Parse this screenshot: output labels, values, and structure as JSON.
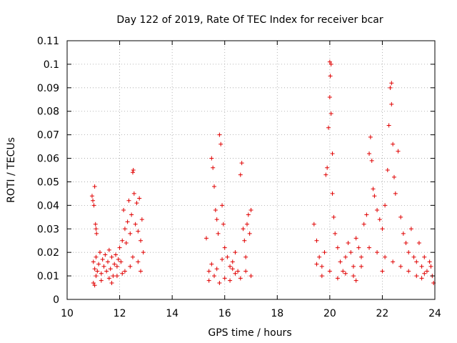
{
  "chart_data": {
    "type": "scatter",
    "title": "Day 122 of 2019, Rate Of TEC Index for receiver bcar",
    "xlabel": "GPS time / hours",
    "ylabel": "ROTI / TECUs",
    "xlim": [
      10,
      24
    ],
    "ylim": [
      0,
      0.11
    ],
    "grid": true,
    "marker": "plus",
    "color": "#e00000",
    "x_ticks": [
      10,
      12,
      14,
      16,
      18,
      20,
      22,
      24
    ],
    "x_tick_labels": [
      "10",
      "12",
      "14",
      "16",
      "18",
      "20",
      "22",
      "24"
    ],
    "y_ticks": [
      0,
      0.01,
      0.02,
      0.03,
      0.04,
      0.05,
      0.06,
      0.07,
      0.08,
      0.09,
      0.1,
      0.11
    ],
    "y_tick_labels": [
      "0",
      "0.01",
      "0.02",
      "0.03",
      "0.04",
      "0.05",
      "0.06",
      "0.07",
      "0.08",
      "0.09",
      "0.1",
      "0.11"
    ],
    "series": [
      {
        "name": "ROTI",
        "points": [
          [
            10.95,
            0.044
          ],
          [
            10.98,
            0.042
          ],
          [
            11.02,
            0.04
          ],
          [
            11.05,
            0.048
          ],
          [
            11.08,
            0.032
          ],
          [
            11.1,
            0.03
          ],
          [
            11.12,
            0.028
          ],
          [
            11.0,
            0.007
          ],
          [
            11.05,
            0.006
          ],
          [
            11.1,
            0.01
          ],
          [
            11.0,
            0.016
          ],
          [
            11.05,
            0.013
          ],
          [
            11.1,
            0.018
          ],
          [
            11.15,
            0.012
          ],
          [
            11.2,
            0.015
          ],
          [
            11.25,
            0.02
          ],
          [
            11.3,
            0.011
          ],
          [
            11.35,
            0.017
          ],
          [
            11.4,
            0.014
          ],
          [
            11.45,
            0.019
          ],
          [
            11.5,
            0.012
          ],
          [
            11.55,
            0.016
          ],
          [
            11.6,
            0.021
          ],
          [
            11.65,
            0.013
          ],
          [
            11.7,
            0.018
          ],
          [
            11.75,
            0.01
          ],
          [
            11.8,
            0.015
          ],
          [
            11.85,
            0.019
          ],
          [
            11.9,
            0.014
          ],
          [
            11.95,
            0.017
          ],
          [
            12.0,
            0.022
          ],
          [
            12.05,
            0.016
          ],
          [
            12.1,
            0.025
          ],
          [
            12.15,
            0.038
          ],
          [
            12.2,
            0.03
          ],
          [
            12.25,
            0.024
          ],
          [
            12.3,
            0.033
          ],
          [
            12.35,
            0.042
          ],
          [
            12.4,
            0.028
          ],
          [
            12.45,
            0.036
          ],
          [
            12.5,
            0.054
          ],
          [
            12.52,
            0.055
          ],
          [
            12.55,
            0.045
          ],
          [
            12.6,
            0.032
          ],
          [
            12.65,
            0.041
          ],
          [
            12.7,
            0.029
          ],
          [
            12.75,
            0.043
          ],
          [
            12.8,
            0.025
          ],
          [
            12.85,
            0.034
          ],
          [
            12.9,
            0.02
          ],
          [
            11.3,
            0.008
          ],
          [
            11.6,
            0.009
          ],
          [
            11.9,
            0.01
          ],
          [
            12.2,
            0.012
          ],
          [
            12.5,
            0.018
          ],
          [
            12.7,
            0.016
          ],
          [
            12.8,
            0.012
          ],
          [
            12.4,
            0.014
          ],
          [
            12.1,
            0.011
          ],
          [
            11.7,
            0.007
          ],
          [
            15.3,
            0.026
          ],
          [
            15.4,
            0.012
          ],
          [
            15.5,
            0.06
          ],
          [
            15.55,
            0.056
          ],
          [
            15.6,
            0.048
          ],
          [
            15.65,
            0.038
          ],
          [
            15.7,
            0.034
          ],
          [
            15.75,
            0.028
          ],
          [
            15.8,
            0.07
          ],
          [
            15.85,
            0.066
          ],
          [
            15.9,
            0.04
          ],
          [
            15.95,
            0.032
          ],
          [
            16.0,
            0.022
          ],
          [
            16.1,
            0.018
          ],
          [
            16.2,
            0.014
          ],
          [
            16.3,
            0.016
          ],
          [
            16.4,
            0.02
          ],
          [
            16.5,
            0.012
          ],
          [
            16.6,
            0.053
          ],
          [
            16.65,
            0.058
          ],
          [
            16.7,
            0.03
          ],
          [
            16.75,
            0.025
          ],
          [
            16.8,
            0.018
          ],
          [
            16.85,
            0.032
          ],
          [
            16.9,
            0.036
          ],
          [
            16.95,
            0.028
          ],
          [
            17.0,
            0.038
          ],
          [
            15.4,
            0.008
          ],
          [
            15.6,
            0.01
          ],
          [
            15.8,
            0.007
          ],
          [
            16.0,
            0.009
          ],
          [
            16.2,
            0.008
          ],
          [
            16.4,
            0.011
          ],
          [
            16.6,
            0.009
          ],
          [
            16.8,
            0.012
          ],
          [
            17.0,
            0.01
          ],
          [
            15.5,
            0.015
          ],
          [
            15.7,
            0.013
          ],
          [
            15.9,
            0.017
          ],
          [
            16.3,
            0.013
          ],
          [
            19.4,
            0.032
          ],
          [
            19.5,
            0.025
          ],
          [
            19.6,
            0.018
          ],
          [
            19.7,
            0.014
          ],
          [
            19.8,
            0.02
          ],
          [
            19.85,
            0.053
          ],
          [
            19.9,
            0.056
          ],
          [
            19.95,
            0.073
          ],
          [
            20.0,
            0.086
          ],
          [
            20.02,
            0.095
          ],
          [
            20.0,
            0.101
          ],
          [
            20.05,
            0.1
          ],
          [
            20.05,
            0.079
          ],
          [
            20.1,
            0.062
          ],
          [
            20.1,
            0.045
          ],
          [
            20.15,
            0.035
          ],
          [
            20.2,
            0.028
          ],
          [
            20.3,
            0.022
          ],
          [
            20.4,
            0.016
          ],
          [
            20.5,
            0.012
          ],
          [
            20.6,
            0.018
          ],
          [
            20.7,
            0.024
          ],
          [
            20.8,
            0.02
          ],
          [
            20.9,
            0.014
          ],
          [
            21.0,
            0.026
          ],
          [
            21.1,
            0.022
          ],
          [
            21.2,
            0.018
          ],
          [
            21.3,
            0.032
          ],
          [
            21.4,
            0.036
          ],
          [
            21.5,
            0.062
          ],
          [
            21.55,
            0.069
          ],
          [
            21.6,
            0.059
          ],
          [
            21.65,
            0.047
          ],
          [
            21.7,
            0.044
          ],
          [
            21.8,
            0.038
          ],
          [
            21.9,
            0.034
          ],
          [
            22.0,
            0.03
          ],
          [
            22.1,
            0.04
          ],
          [
            22.2,
            0.055
          ],
          [
            22.25,
            0.074
          ],
          [
            22.3,
            0.09
          ],
          [
            22.35,
            0.092
          ],
          [
            22.35,
            0.083
          ],
          [
            22.4,
            0.066
          ],
          [
            22.45,
            0.052
          ],
          [
            22.5,
            0.045
          ],
          [
            22.6,
            0.063
          ],
          [
            22.7,
            0.035
          ],
          [
            22.8,
            0.028
          ],
          [
            22.9,
            0.024
          ],
          [
            23.0,
            0.02
          ],
          [
            23.1,
            0.03
          ],
          [
            23.2,
            0.018
          ],
          [
            23.3,
            0.016
          ],
          [
            23.4,
            0.024
          ],
          [
            23.5,
            0.014
          ],
          [
            23.6,
            0.018
          ],
          [
            23.7,
            0.012
          ],
          [
            23.8,
            0.016
          ],
          [
            23.9,
            0.01
          ],
          [
            23.95,
            0.007
          ],
          [
            23.85,
            0.014
          ],
          [
            23.6,
            0.011
          ],
          [
            23.3,
            0.01
          ],
          [
            23.0,
            0.012
          ],
          [
            22.7,
            0.014
          ],
          [
            22.4,
            0.016
          ],
          [
            22.1,
            0.018
          ],
          [
            21.8,
            0.02
          ],
          [
            21.5,
            0.022
          ],
          [
            21.2,
            0.014
          ],
          [
            20.9,
            0.01
          ],
          [
            20.6,
            0.011
          ],
          [
            20.3,
            0.009
          ],
          [
            20.0,
            0.012
          ],
          [
            19.7,
            0.01
          ],
          [
            19.5,
            0.015
          ],
          [
            21.0,
            0.008
          ],
          [
            22.0,
            0.012
          ],
          [
            23.5,
            0.009
          ]
        ]
      }
    ]
  }
}
